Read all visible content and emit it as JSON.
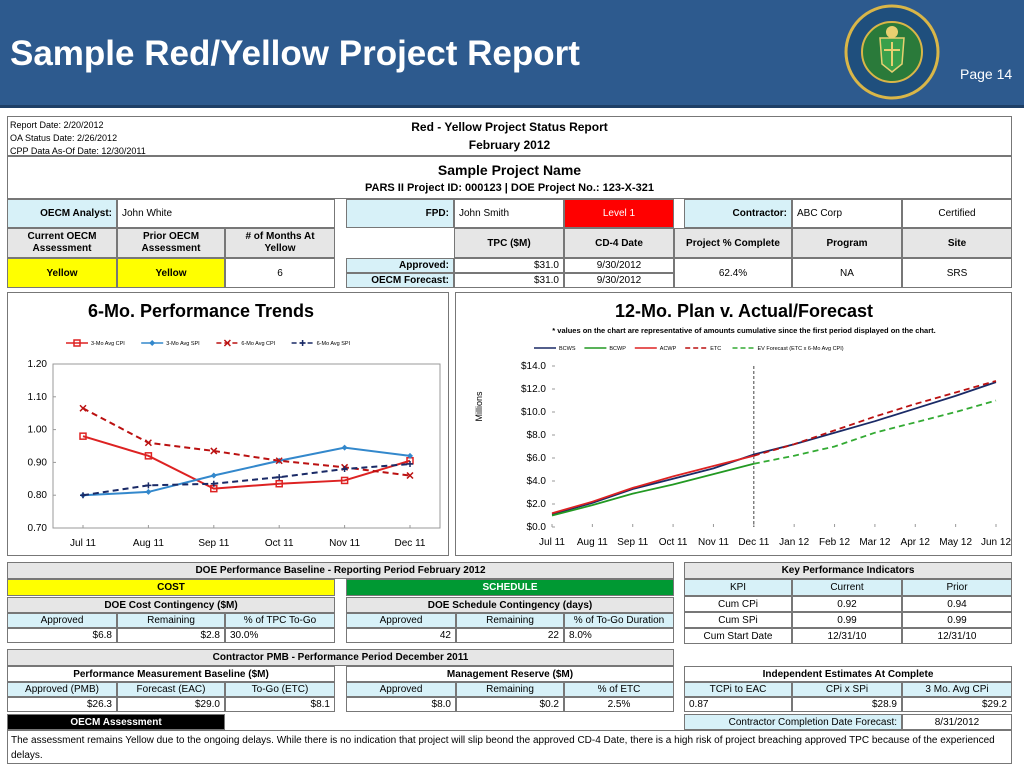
{
  "slide": {
    "title": "Sample Red/Yellow Project Report",
    "page": "Page 14"
  },
  "logo": {
    "text": "DEPARTMENT OF ENERGY · UNITED STATES OF AMERICA"
  },
  "colors": {
    "header": "#2d5a8e",
    "cyan": "#d7f1f8",
    "yellow": "#ffff00",
    "red": "#ff0000",
    "green": "#009933"
  },
  "report": {
    "dates": [
      "Report Date: 2/20/2012",
      "OA Status Date: 2/26/2012",
      "CPP Data As-Of Date: 12/30/2011"
    ],
    "title": "Red - Yellow Project Status Report",
    "period": "February 2012",
    "project_name": "Sample Project Name",
    "project_ids": "PARS II Project ID: 000123   |   DOE Project No.: 123-X-321",
    "analyst_label": "OECM Analyst:",
    "analyst": "John White",
    "fpd_label": "FPD:",
    "fpd": "John Smith",
    "level": "Level 1",
    "contractor_label": "Contractor:",
    "contractor": "ABC Corp",
    "certified": "Certified",
    "headers": {
      "current": "Current OECM Assessment",
      "prior": "Prior OECM Assessment",
      "months": "# of Months At Yellow",
      "tpc": "TPC ($M)",
      "cd4": "CD-4 Date",
      "pct": "Project % Complete",
      "program": "Program",
      "site": "Site"
    },
    "values": {
      "current": "Yellow",
      "prior": "Yellow",
      "months": "6",
      "approved_label": "Approved:",
      "forecast_label": "OECM Forecast:",
      "tpc_approved": "$31.0",
      "tpc_forecast": "$31.0",
      "cd4_approved": "9/30/2012",
      "cd4_forecast": "9/30/2012",
      "pct": "62.4%",
      "program": "NA",
      "site": "SRS"
    }
  },
  "chart_data": [
    {
      "type": "line",
      "title": "6-Mo. Performance Trends",
      "categories": [
        "Jul 11",
        "Aug 11",
        "Sep 11",
        "Oct 11",
        "Nov 11",
        "Dec 11"
      ],
      "ylim": [
        0.7,
        1.2
      ],
      "yticks": [
        "0.70",
        "0.80",
        "0.90",
        "1.00",
        "1.10",
        "1.20"
      ],
      "series": [
        {
          "name": "3-Mo Avg CPI",
          "values": [
            0.98,
            0.92,
            0.82,
            0.835,
            0.845,
            0.905
          ],
          "color": "#dd2222",
          "dash": false,
          "marker": "square"
        },
        {
          "name": "3-Mo Avg SPI",
          "values": [
            0.8,
            0.81,
            0.86,
            0.905,
            0.945,
            0.92
          ],
          "color": "#3388cc",
          "dash": false,
          "marker": "diamond"
        },
        {
          "name": "6-Mo Avg CPI",
          "values": [
            1.065,
            0.96,
            0.935,
            0.905,
            0.885,
            0.86
          ],
          "color": "#bb1111",
          "dash": true,
          "marker": "x"
        },
        {
          "name": "6-Mo Avg SPI",
          "values": [
            0.8,
            0.83,
            0.835,
            0.855,
            0.88,
            0.895
          ],
          "color": "#1a2a66",
          "dash": true,
          "marker": "plus"
        }
      ]
    },
    {
      "type": "line",
      "title": "12-Mo. Plan v. Actual/Forecast",
      "subtitle": "* values on the chart are representative of amounts cumulative since the first period displayed on the chart.",
      "ylabel": "Millions",
      "categories": [
        "Jul 11",
        "Aug 11",
        "Sep 11",
        "Oct 11",
        "Nov 11",
        "Dec 11",
        "Jan 12",
        "Feb 12",
        "Mar 12",
        "Apr 12",
        "May 12",
        "Jun 12"
      ],
      "ylim": [
        0,
        14
      ],
      "yticks": [
        "$0.0",
        "$2.0",
        "$4.0",
        "$6.0",
        "$8.0",
        "$10.0",
        "$12.0",
        "$14.0"
      ],
      "series": [
        {
          "name": "BCWS",
          "values": [
            1.1,
            2.1,
            3.3,
            4.2,
            5.1,
            6.3,
            7.2,
            8.2,
            9.2,
            10.3,
            11.4,
            12.6
          ],
          "color": "#1a2a66",
          "dash": false
        },
        {
          "name": "BCWP",
          "values": [
            1.0,
            1.9,
            2.9,
            3.7,
            4.6,
            5.5,
            null,
            null,
            null,
            null,
            null,
            null
          ],
          "color": "#229922",
          "dash": false
        },
        {
          "name": "ACWP",
          "values": [
            1.2,
            2.2,
            3.4,
            4.4,
            5.3,
            6.2,
            null,
            null,
            null,
            null,
            null,
            null
          ],
          "color": "#dd2222",
          "dash": false
        },
        {
          "name": "ETC",
          "values": [
            null,
            null,
            null,
            null,
            null,
            6.2,
            7.2,
            8.4,
            9.6,
            10.7,
            11.7,
            12.7
          ],
          "color": "#bb1111",
          "dash": true
        },
        {
          "name": "EV Forecast (ETC x 6-Mo Avg CPI)",
          "values": [
            null,
            null,
            null,
            null,
            null,
            5.5,
            6.2,
            7.0,
            8.2,
            9.1,
            10.0,
            11.0
          ],
          "color": "#33aa33",
          "dash": true
        }
      ]
    }
  ],
  "baseline": {
    "title": "DOE Performance Baseline - Reporting Period February 2012",
    "cost": "COST",
    "schedule": "SCHEDULE",
    "cost_contingency": "DOE Cost Contingency ($M)",
    "schedule_contingency": "DOE Schedule Contingency (days)",
    "cost_cols": [
      "Approved",
      "Remaining",
      "% of TPC To-Go"
    ],
    "cost_vals": [
      "$6.8",
      "$2.8",
      "30.0%"
    ],
    "sched_cols": [
      "Approved",
      "Remaining",
      "% of To-Go Duration"
    ],
    "sched_vals": [
      "42",
      "22",
      "8.0%"
    ]
  },
  "kpi": {
    "title": "Key Performance Indicators",
    "cols": [
      "KPI",
      "Current",
      "Prior"
    ],
    "rows": [
      [
        "Cum CPi",
        "0.92",
        "0.94"
      ],
      [
        "Cum SPi",
        "0.99",
        "0.99"
      ],
      [
        "Cum Start Date",
        "12/31/10",
        "12/31/10"
      ]
    ]
  },
  "pmb": {
    "title": "Contractor PMB - Performance Period December 2011",
    "pmb_title": "Performance Measurement Baseline ($M)",
    "pmb_cols": [
      "Approved (PMB)",
      "Forecast (EAC)",
      "To-Go (ETC)"
    ],
    "pmb_vals": [
      "$26.3",
      "$29.0",
      "$8.1"
    ],
    "mr_title": "Management Reserve ($M)",
    "mr_cols": [
      "Approved",
      "Remaining",
      "% of ETC"
    ],
    "mr_vals": [
      "$8.0",
      "$0.2",
      "2.5%"
    ]
  },
  "ieac": {
    "title": "Independent Estimates At Complete",
    "cols": [
      "TCPi to EAC",
      "CPi x SPi",
      "3 Mo. Avg CPi"
    ],
    "vals": [
      "0.87",
      "$28.9",
      "$29.2"
    ],
    "completion_label": "Contractor Completion Date Forecast:",
    "completion": "8/31/2012"
  },
  "assessment": {
    "label": "OECM Assessment",
    "text": "The assessment remains Yellow due to the ongoing delays.  While there is no indication that project will slip beond the approved CD-4 Date, there is a high risk of project breaching approved TPC because of the experienced delays."
  }
}
